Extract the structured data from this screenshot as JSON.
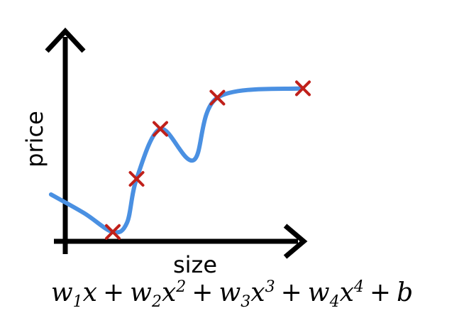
{
  "diagram": {
    "x_axis_label": "size",
    "y_axis_label": "price",
    "curve_color": "#4a90e2",
    "marker_color": "#c0201a",
    "axis_color": "#000000",
    "data_points": [
      {
        "size": 1.0,
        "price": 0.3
      },
      {
        "size": 1.5,
        "price": 2.0
      },
      {
        "size": 2.0,
        "price": 3.6
      },
      {
        "size": 3.2,
        "price": 4.6
      },
      {
        "size": 5.0,
        "price": 4.9
      }
    ],
    "fitted_curve": [
      {
        "size": -0.3,
        "price": 1.5
      },
      {
        "size": 0.4,
        "price": 0.9
      },
      {
        "size": 1.0,
        "price": 0.3
      },
      {
        "size": 1.3,
        "price": 0.6
      },
      {
        "size": 1.5,
        "price": 2.0
      },
      {
        "size": 2.0,
        "price": 3.6
      },
      {
        "size": 2.7,
        "price": 2.6
      },
      {
        "size": 3.2,
        "price": 4.6
      },
      {
        "size": 5.0,
        "price": 4.9
      }
    ]
  },
  "formula": {
    "w1": "w",
    "s1": "1",
    "x1": "x",
    "w2": "w",
    "s2": "2",
    "x2": "x",
    "p2": "2",
    "w3": "w",
    "s3": "3",
    "x3": "x",
    "p3": "3",
    "w4": "w",
    "s4": "4",
    "x4": "x",
    "p4": "4",
    "b": "b",
    "plus": "+"
  }
}
